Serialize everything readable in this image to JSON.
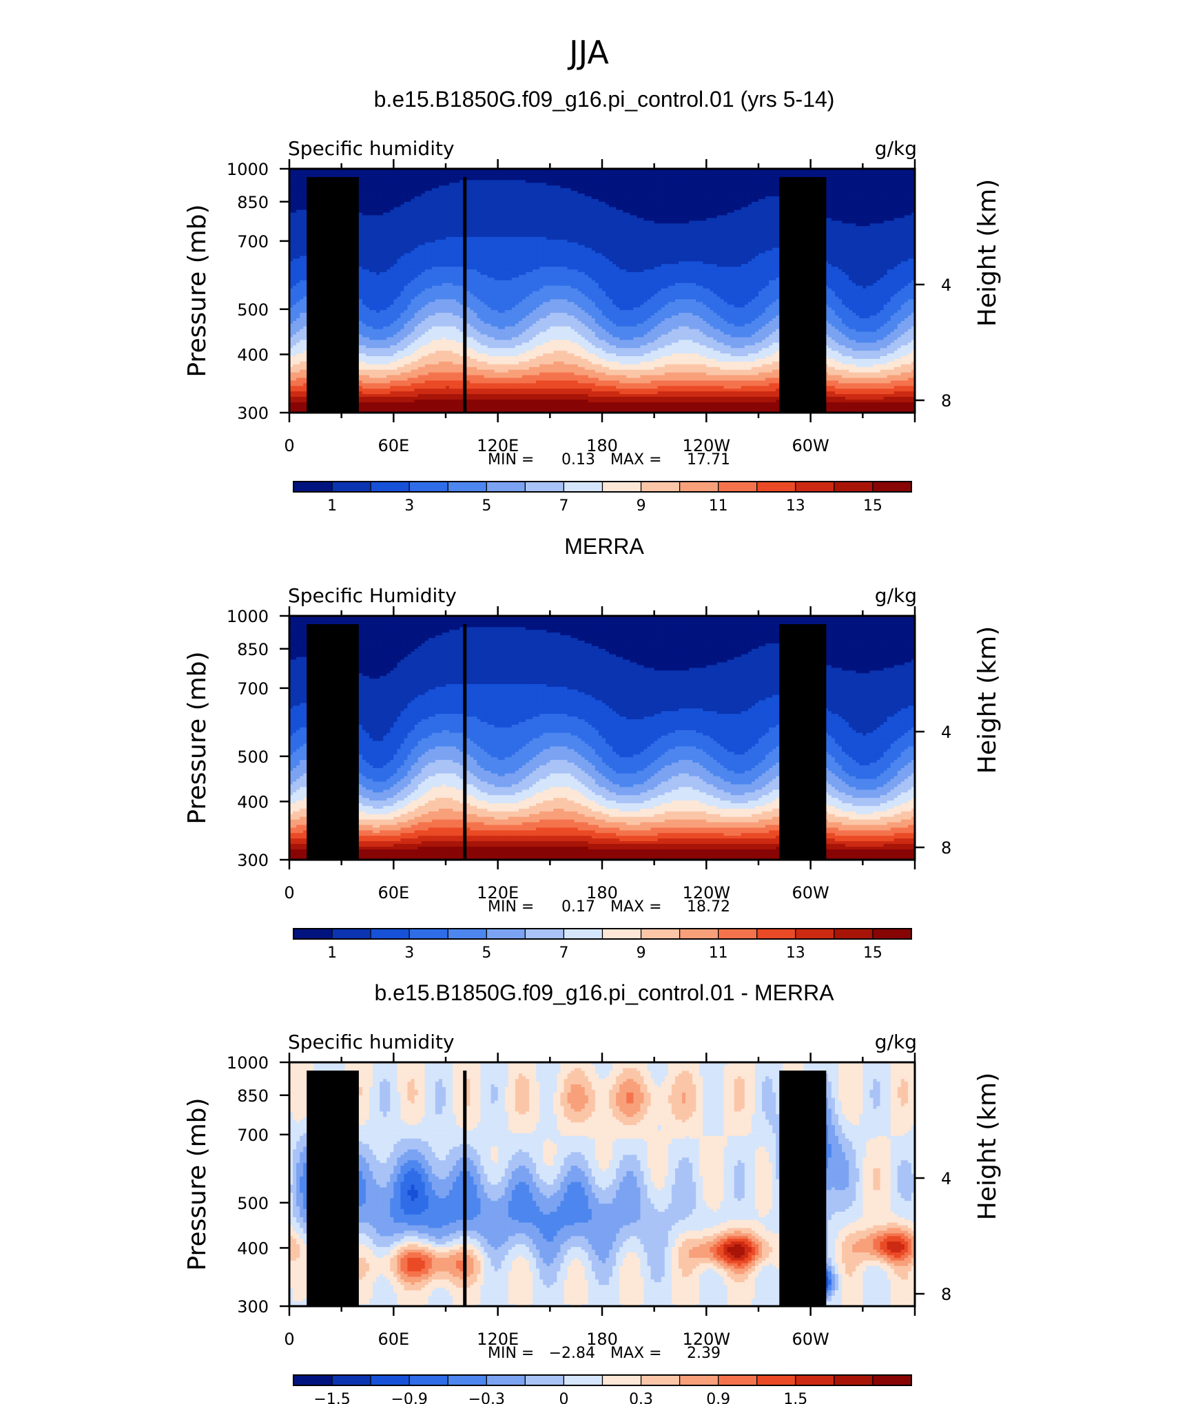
{
  "figure_title": "JJA",
  "chart_data": [
    {
      "type": "heatmap",
      "title": "b.e15.B1850G.f09_g16.pi_control.01 (yrs 5-14)",
      "left_label": "Specific humidity",
      "right_label": "g/kg",
      "ylabel": "Pressure (mb)",
      "y2label": "Height (km)",
      "ylim": [
        1000,
        300
      ],
      "y_ticks": [
        "300",
        "400",
        "500",
        "700",
        "850",
        "1000"
      ],
      "y2_ticks": [
        "8",
        "4"
      ],
      "x_ticks": [
        "0",
        "60E",
        "120E",
        "180",
        "120W",
        "60W"
      ],
      "x_range_deg": [
        0,
        360
      ],
      "stats": {
        "min_label": "MIN =",
        "min": "0.13",
        "max_label": "MAX =",
        "max": "17.71"
      },
      "colorbar_labels": [
        "1",
        "3",
        "5",
        "7",
        "9",
        "11",
        "13",
        "15"
      ],
      "colorbar_levels": [
        1,
        2,
        3,
        4,
        5,
        6,
        7,
        8,
        9,
        10,
        11,
        12,
        13,
        14,
        15
      ],
      "colorbar_colors": [
        "#00137f",
        "#0a34b0",
        "#1651d8",
        "#2f6de8",
        "#4d86ee",
        "#7ba3f2",
        "#a9c3f7",
        "#d5e5fb",
        "#fde7d6",
        "#fbc6a8",
        "#f8a07a",
        "#f4734d",
        "#ea4a25",
        "#cc2a12",
        "#a81508",
        "#880505"
      ]
    },
    {
      "type": "heatmap",
      "title": "MERRA",
      "left_label": "Specific Humidity",
      "right_label": "g/kg",
      "ylabel": "Pressure (mb)",
      "y2label": "Height (km)",
      "ylim": [
        1000,
        300
      ],
      "y_ticks": [
        "300",
        "400",
        "500",
        "700",
        "850",
        "1000"
      ],
      "y2_ticks": [
        "8",
        "4"
      ],
      "x_ticks": [
        "0",
        "60E",
        "120E",
        "180",
        "120W",
        "60W"
      ],
      "x_range_deg": [
        0,
        360
      ],
      "stats": {
        "min_label": "MIN =",
        "min": "0.17",
        "max_label": "MAX =",
        "max": "18.72"
      },
      "colorbar_labels": [
        "1",
        "3",
        "5",
        "7",
        "9",
        "11",
        "13",
        "15"
      ],
      "colorbar_levels": [
        1,
        2,
        3,
        4,
        5,
        6,
        7,
        8,
        9,
        10,
        11,
        12,
        13,
        14,
        15
      ],
      "colorbar_colors": [
        "#00137f",
        "#0a34b0",
        "#1651d8",
        "#2f6de8",
        "#4d86ee",
        "#7ba3f2",
        "#a9c3f7",
        "#d5e5fb",
        "#fde7d6",
        "#fbc6a8",
        "#f8a07a",
        "#f4734d",
        "#ea4a25",
        "#cc2a12",
        "#a81508",
        "#880505"
      ]
    },
    {
      "type": "heatmap",
      "title": "b.e15.B1850G.f09_g16.pi_control.01 - MERRA",
      "left_label": "Specific humidity",
      "right_label": "g/kg",
      "ylabel": "Pressure (mb)",
      "y2label": "Height (km)",
      "ylim": [
        1000,
        300
      ],
      "y_ticks": [
        "300",
        "400",
        "500",
        "700",
        "850",
        "1000"
      ],
      "y2_ticks": [
        "8",
        "4"
      ],
      "x_ticks": [
        "0",
        "60E",
        "120E",
        "180",
        "120W",
        "60W"
      ],
      "x_range_deg": [
        0,
        360
      ],
      "stats": {
        "min_label": "MIN =",
        "min": "−2.84",
        "max_label": "MAX =",
        "max": "2.39"
      },
      "colorbar_labels": [
        "−1.5",
        "−0.9",
        "−0.3",
        "0",
        "0.3",
        "0.9",
        "1.5"
      ],
      "colorbar_levels": [
        -2.1,
        -1.8,
        -1.5,
        -1.2,
        -0.9,
        -0.6,
        -0.3,
        0,
        0.3,
        0.6,
        0.9,
        1.2,
        1.5,
        1.8,
        2.1
      ],
      "colorbar_colors": [
        "#00137f",
        "#0a34b0",
        "#1651d8",
        "#2f6de8",
        "#4d86ee",
        "#7ba3f2",
        "#a9c3f7",
        "#d5e5fb",
        "#fde7d6",
        "#fbc6a8",
        "#f8a07a",
        "#f4734d",
        "#ea4a25",
        "#cc2a12",
        "#a81508",
        "#880505"
      ]
    }
  ]
}
